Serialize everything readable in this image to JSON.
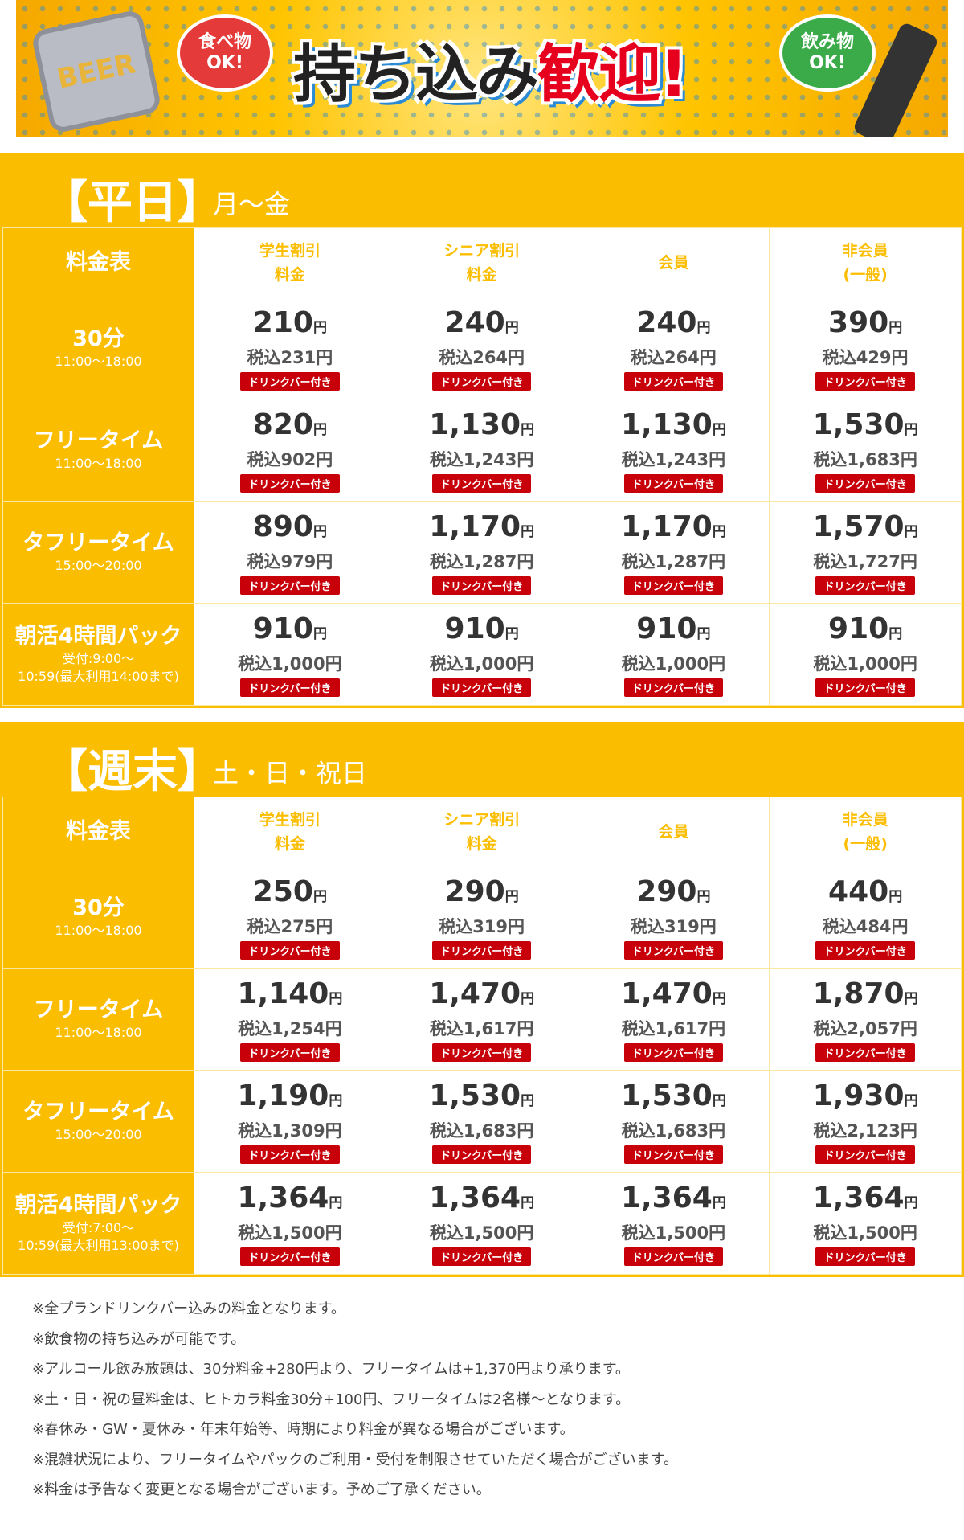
{
  "banner": {
    "title_black": "持ち込み",
    "title_red": "歓迎!",
    "food_ok": "食べ物 OK!",
    "drink_ok": "飲み物 OK!",
    "beer": "BEER"
  },
  "columns": [
    "学生割引\n料金",
    "シニア割引\n料金",
    "会員",
    "非会員\n(一般)"
  ],
  "table_label": "料金表",
  "tag": "ドリンクバー付き",
  "yen": "円",
  "sections": [
    {
      "title": "【平日】",
      "days": "月〜金",
      "rows": [
        {
          "name": "30分",
          "time": "11:00〜18:00",
          "prices": [
            [
              "210",
              "税込231円"
            ],
            [
              "240",
              "税込264円"
            ],
            [
              "240",
              "税込264円"
            ],
            [
              "390",
              "税込429円"
            ]
          ]
        },
        {
          "name": "フリータイム",
          "time": "11:00〜18:00",
          "prices": [
            [
              "820",
              "税込902円"
            ],
            [
              "1,130",
              "税込1,243円"
            ],
            [
              "1,130",
              "税込1,243円"
            ],
            [
              "1,530",
              "税込1,683円"
            ]
          ]
        },
        {
          "name": "タフリータイム",
          "time": "15:00〜20:00",
          "prices": [
            [
              "890",
              "税込979円"
            ],
            [
              "1,170",
              "税込1,287円"
            ],
            [
              "1,170",
              "税込1,287円"
            ],
            [
              "1,570",
              "税込1,727円"
            ]
          ]
        },
        {
          "name": "朝活4時間パック",
          "time": "受付:9:00〜\n10:59(最大利用14:00まで)",
          "prices": [
            [
              "910",
              "税込1,000円"
            ],
            [
              "910",
              "税込1,000円"
            ],
            [
              "910",
              "税込1,000円"
            ],
            [
              "910",
              "税込1,000円"
            ]
          ]
        }
      ]
    },
    {
      "title": "【週末】",
      "days": "土・日・祝日",
      "rows": [
        {
          "name": "30分",
          "time": "11:00〜18:00",
          "prices": [
            [
              "250",
              "税込275円"
            ],
            [
              "290",
              "税込319円"
            ],
            [
              "290",
              "税込319円"
            ],
            [
              "440",
              "税込484円"
            ]
          ]
        },
        {
          "name": "フリータイム",
          "time": "11:00〜18:00",
          "prices": [
            [
              "1,140",
              "税込1,254円"
            ],
            [
              "1,470",
              "税込1,617円"
            ],
            [
              "1,470",
              "税込1,617円"
            ],
            [
              "1,870",
              "税込2,057円"
            ]
          ]
        },
        {
          "name": "タフリータイム",
          "time": "15:00〜20:00",
          "prices": [
            [
              "1,190",
              "税込1,309円"
            ],
            [
              "1,530",
              "税込1,683円"
            ],
            [
              "1,530",
              "税込1,683円"
            ],
            [
              "1,930",
              "税込2,123円"
            ]
          ]
        },
        {
          "name": "朝活4時間パック",
          "time": "受付:7:00〜\n10:59(最大利用13:00まで)",
          "prices": [
            [
              "1,364",
              "税込1,500円"
            ],
            [
              "1,364",
              "税込1,500円"
            ],
            [
              "1,364",
              "税込1,500円"
            ],
            [
              "1,364",
              "税込1,500円"
            ]
          ]
        }
      ]
    }
  ],
  "notes": [
    "※全プランドリンクバー込みの料金となります。",
    "※飲食物の持ち込みが可能です。",
    "※アルコール飲み放題は、30分料金+280円より、フリータイムは+1,370円より承ります。",
    "※土・日・祝の昼料金は、ヒトカラ料金30分+100円、フリータイムは2名様〜となります。",
    "※春休み・GW・夏休み・年末年始等、時期により料金が異なる場合がございます。",
    "※混雑状況により、フリータイムやパックのご利用・受付を制限させていただく場合がございます。",
    "※料金は予告なく変更となる場合がございます。予めご了承ください。"
  ],
  "colors": {
    "accent": "#fbbd00",
    "tag": "#c8000a"
  }
}
